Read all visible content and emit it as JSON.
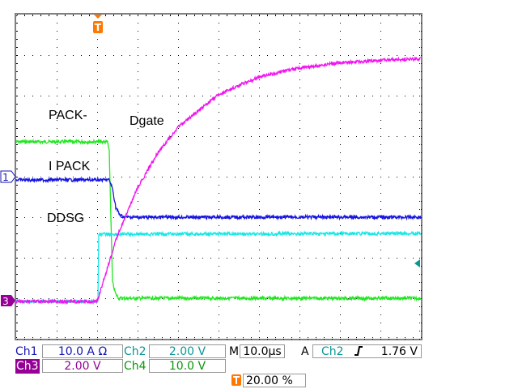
{
  "chart_data": {
    "type": "line",
    "title": "",
    "xlabel": "",
    "ylabel": "",
    "grid": true,
    "xunits": "µs",
    "yunits": "divisions",
    "xlim": [
      -20,
      80
    ],
    "ylim": [
      -4,
      4
    ],
    "series": [
      {
        "name": "PACK-",
        "channel": "Ch4",
        "color": "#22e622",
        "points": [
          [
            -20,
            0.86
          ],
          [
            2.6,
            0.86
          ],
          [
            3.0,
            0.6
          ],
          [
            3.8,
            -2.6
          ],
          [
            4.6,
            -2.9
          ],
          [
            5.4,
            -3.0
          ],
          [
            80,
            -3.0
          ]
        ]
      },
      {
        "name": "I PACK",
        "channel": "Ch1",
        "color": "#1414e0",
        "points": [
          [
            -20,
            -0.08
          ],
          [
            3.0,
            -0.08
          ],
          [
            3.8,
            -0.3
          ],
          [
            4.6,
            -0.75
          ],
          [
            5.6,
            -0.95
          ],
          [
            7,
            -1.0
          ],
          [
            80,
            -1.0
          ]
        ]
      },
      {
        "name": "DDSG",
        "channel": "Ch2",
        "color": "#19e6e6",
        "points": [
          [
            -20,
            -3.08
          ],
          [
            0.2,
            -3.08
          ],
          [
            0.4,
            -1.42
          ],
          [
            80,
            -1.4
          ]
        ]
      },
      {
        "name": "Dgate",
        "channel": "Ch3",
        "color": "#f014f0",
        "points": [
          [
            -20,
            -3.08
          ],
          [
            0,
            -3.08
          ],
          [
            5,
            -1.46
          ],
          [
            10,
            -0.28
          ],
          [
            15,
            0.59
          ],
          [
            20,
            1.22
          ],
          [
            30,
            2.03
          ],
          [
            40,
            2.46
          ],
          [
            50,
            2.68
          ],
          [
            60,
            2.81
          ],
          [
            70,
            2.87
          ],
          [
            80,
            2.91
          ]
        ]
      }
    ]
  },
  "labels": {
    "pack": "PACK-",
    "dgate": "Dgate",
    "ipack": "I PACK",
    "ddsg": "DDSG"
  },
  "markers": {
    "ch1": "1",
    "ch3": "3",
    "trigger": "T"
  },
  "status": {
    "ch1_label": "Ch1",
    "ch1_scale": "10.0 A Ω",
    "ch2_label": "Ch2",
    "ch2_scale": "2.00 V",
    "ch3_label": "Ch3",
    "ch3_scale": "2.00 V",
    "ch4_label": "Ch4",
    "ch4_scale": "10.0 V",
    "m_label": "M",
    "timebase": "10.0µs",
    "a_label": "A",
    "trig_source": "Ch2",
    "trig_slope": "rising",
    "trig_level": "1.76 V",
    "trig_position": "20.00 %"
  },
  "colors": {
    "ch1": "#1414b4",
    "ch2": "#0a9696",
    "ch3": "#960096",
    "ch4": "#0a960a",
    "trigger": "#ff7800"
  }
}
